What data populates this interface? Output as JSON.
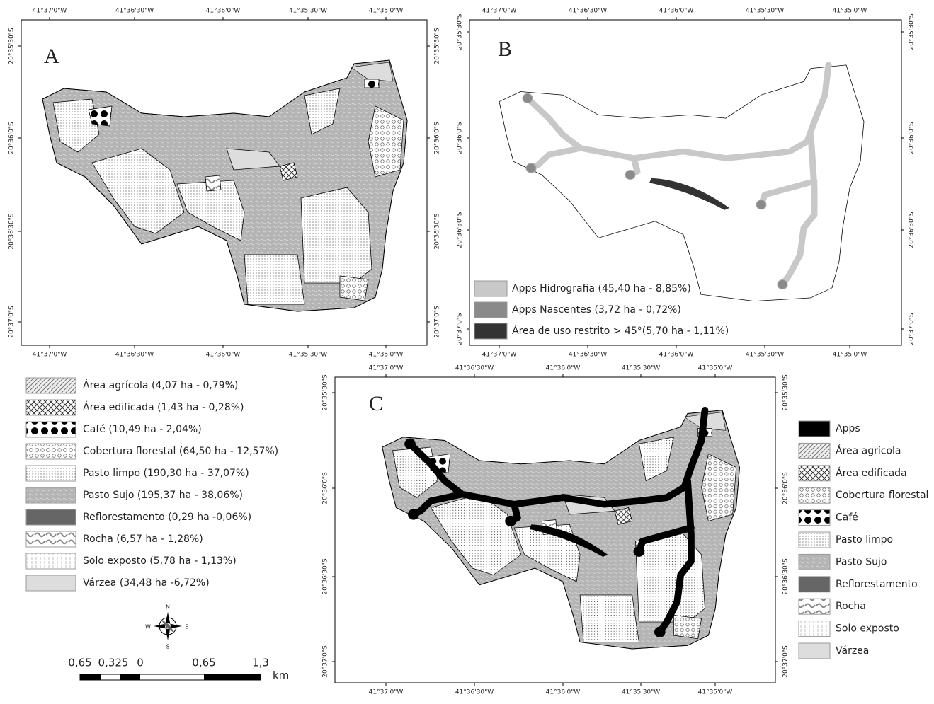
{
  "panels": [
    {
      "label": "A",
      "lon_ticks": [
        "41°37'0\"W",
        "41°36'30\"W",
        "41°36'0\"W",
        "41°35'30\"W",
        "41°35'0\"W"
      ],
      "lat_ticks": [
        "20°35'30\"S",
        "20°36'0\"S",
        "20°36'30\"S",
        "20°37'0\"S"
      ]
    },
    {
      "label": "B",
      "lon_ticks": [
        "41°37'0\"W",
        "41°36'30\"W",
        "41°36'0\"W",
        "41°35'30\"W",
        "41°35'0\"W"
      ],
      "lat_ticks": [
        "20°35'30\"S",
        "20°36'0\"S",
        "20°36'30\"S",
        "20°37'0\"S"
      ],
      "legend": [
        "Apps Hidrografia (45,40 ha - 8,85%)",
        "Apps Nascentes  (3,72 ha - 0,72%)",
        "Área de uso restrito > 45°(5,70 ha - 1,11%)"
      ]
    },
    {
      "label": "C",
      "lon_ticks": [
        "41°37'0\"W",
        "41°36'30\"W",
        "41°36'0\"W",
        "41°35'30\"W",
        "41°35'0\"W"
      ],
      "lat_ticks": [
        "20°35'30\"S",
        "20°36'0\"S",
        "20°36'30\"S",
        "20°37'0\"S"
      ],
      "legend": [
        "Apps",
        "Área agrícola",
        "Área edificada",
        "Cobertura florestal",
        "Café",
        "Pasto limpo",
        "Pasto Sujo",
        "Reflorestamento",
        "Rocha",
        "Solo exposto",
        "Várzea"
      ]
    }
  ],
  "legend_a": [
    "Área agrícola (4,07 ha - 0,79%)",
    "Área edificada (1,43 ha - 0,28%)",
    "Café (10,49 ha - 2,04%)",
    "Cobertura florestal (64,50 ha - 12,57%)",
    "Pasto limpo (190,30 ha - 37,07%)",
    "Pasto Sujo (195,37 ha - 38,06%)",
    "Reflorestamento (0,29 ha -0,06%)",
    "Rocha (6,57 ha - 1,28%)",
    "Solo exposto (5,78 ha - 1,13%)",
    "Várzea (34,48 ha -6,72%)"
  ],
  "scale_bar": {
    "labels": [
      "0,65",
      "0,325",
      "0",
      "0,65",
      "1,3"
    ],
    "unit": "km"
  },
  "compass": {
    "n": "N",
    "s": "S",
    "e": "E",
    "w": "W"
  }
}
